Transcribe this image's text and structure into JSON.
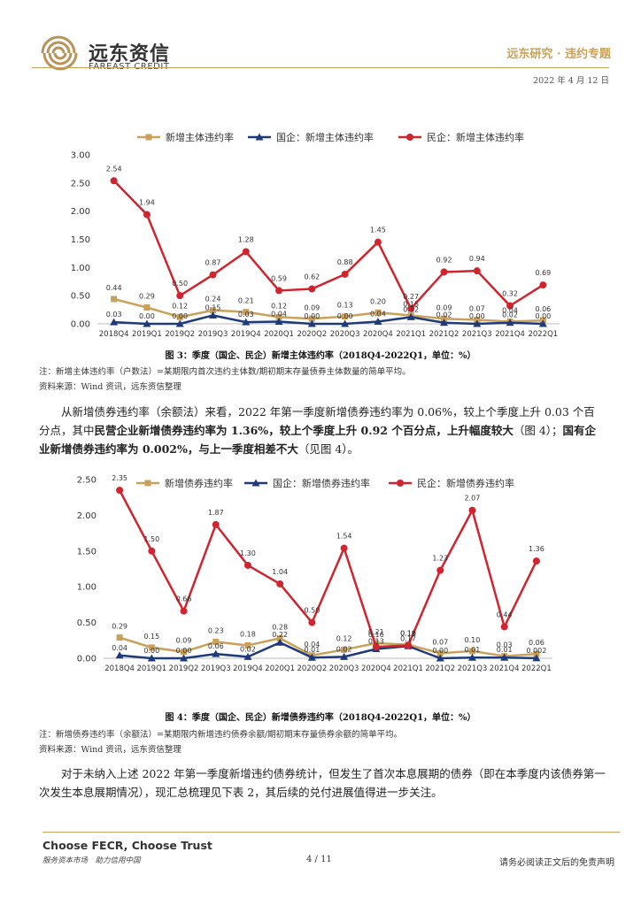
{
  "header": {
    "brand_cn": "远东资信",
    "brand_en": "FAREAST CREDIT",
    "section": "远东研究 · 违约专题",
    "date": "2022 年 4 月 12 日"
  },
  "figure3": {
    "caption": "图 3：季度（国企、民企）新增主体违约率（2018Q4-2022Q1，单位：%）",
    "note": "注：新增主体违约率（户数法）=某期限内首次违约主体数/期初期末存量债券主体数量的简单平均。",
    "source": "资料来源：Wind 资讯，远东资信整理"
  },
  "paragraph1": {
    "part1": "从新增债券违约率（余额法）来看，2022 年第一季度新增债券违约率为 0.06%，较上个季度上升 0.03 个百分点，其中",
    "bold1": "民营企业新增债券违约率为 1.36%，较上个季度上升 0.92 个百分点，上升幅度较大",
    "part2": "（图 4）；",
    "bold2": "国有企业新增债券违约率为 0.002%，与上一季度相差不大",
    "part3": "（见图 4）。"
  },
  "figure4": {
    "caption": "图 4：季度（国企、民企）新增债券违约率（2018Q4-2022Q1，单位：%）",
    "note": "注：新增债券违约率（余额法）=某期限内新增违约债券余额/期初期末存量债券余额的简单平均。",
    "source": "资料来源：Wind 资讯，远东资信整理"
  },
  "paragraph2": "对于未纳入上述 2022 年第一季度新增违约债券统计，但发生了首次本息展期的债券（即在本季度内该债券第一次发生本息展期情况），现汇总梳理见下表 2，其后续的兑付进展值得进一步关注。",
  "footer": {
    "slogan_en": "Choose FECR, Choose Trust",
    "slogan_cn": "服务资本市场　助力信用中国",
    "page": "4 / 11",
    "disclaimer": "请务必阅读正文后的免责声明"
  },
  "chart_data": [
    {
      "type": "line",
      "title": "",
      "categories": [
        "2018Q4",
        "2019Q1",
        "2019Q2",
        "2019Q3",
        "2019Q4",
        "2020Q1",
        "2020Q2",
        "2020Q3",
        "2020Q4",
        "2021Q1",
        "2021Q2",
        "2021Q3",
        "2021Q4",
        "2022Q1"
      ],
      "ylim": [
        0,
        3.0
      ],
      "yticks": [
        "0.00",
        "0.50",
        "1.00",
        "1.50",
        "2.00",
        "2.50",
        "3.00"
      ],
      "legend_position": "top",
      "series": [
        {
          "name": "新增主体违约率",
          "color": "#c9a15a",
          "marker": "square",
          "values": [
            0.44,
            0.29,
            0.12,
            0.24,
            0.21,
            0.12,
            0.09,
            0.13,
            0.2,
            0.15,
            0.09,
            0.07,
            0.04,
            0.06
          ],
          "labels": [
            "0.44",
            "0.29",
            "0.12",
            "0.24",
            "0.21",
            "0.12",
            "0.09",
            "0.13",
            "0.20",
            "0.15",
            "0.09",
            "0.07",
            "0.04",
            "0.06"
          ]
        },
        {
          "name": "国企：新增主体违约率",
          "color": "#1f3a7a",
          "marker": "triangle",
          "values": [
            0.03,
            0.0,
            0.0,
            0.15,
            0.03,
            0.04,
            0.0,
            0.0,
            0.04,
            0.12,
            0.02,
            0.0,
            0.02,
            0.0
          ],
          "labels": [
            "0.03",
            "0.00",
            "0.00",
            "0.15",
            "0.03",
            "0.04",
            "0.00",
            "0.00",
            "0.04",
            "0.12",
            "0.02",
            "0.00",
            "0.02",
            "0.00"
          ]
        },
        {
          "name": "民企：新增主体违约率",
          "color": "#d0242e",
          "marker": "circle",
          "values": [
            2.54,
            1.94,
            0.5,
            0.87,
            1.28,
            0.59,
            0.62,
            0.88,
            1.45,
            0.27,
            0.92,
            0.94,
            0.32,
            0.69
          ],
          "labels": [
            "2.54",
            "1.94",
            "0.50",
            "0.87",
            "1.28",
            "0.59",
            "0.62",
            "0.88",
            "1.45",
            "0.27",
            "0.92",
            "0.94",
            "0.32",
            "0.69"
          ]
        }
      ]
    },
    {
      "type": "line",
      "title": "",
      "categories": [
        "2018Q4",
        "2019Q1",
        "2019Q2",
        "2019Q3",
        "2019Q4",
        "2020Q1",
        "2020Q2",
        "2020Q3",
        "2020Q4",
        "2021Q1",
        "2021Q2",
        "2021Q3",
        "2021Q4",
        "2022Q1"
      ],
      "ylim": [
        0,
        2.5
      ],
      "yticks": [
        "0.00",
        "0.50",
        "1.00",
        "1.50",
        "2.00",
        "2.50"
      ],
      "legend_position": "top",
      "series": [
        {
          "name": "新增债券违约率",
          "color": "#c9a15a",
          "marker": "square",
          "values": [
            0.29,
            0.15,
            0.09,
            0.23,
            0.18,
            0.28,
            0.04,
            0.12,
            0.21,
            0.19,
            0.07,
            0.1,
            0.03,
            0.06
          ],
          "labels": [
            "0.29",
            "0.15",
            "0.09",
            "0.23",
            "0.18",
            "0.28",
            "0.04",
            "0.12",
            "0.21",
            "0.19",
            "0.07",
            "0.10",
            "0.03",
            "0.06"
          ]
        },
        {
          "name": "国企：新增债券违约率",
          "color": "#1f3a7a",
          "marker": "triangle",
          "values": [
            0.04,
            0.0,
            0.0,
            0.06,
            0.02,
            0.22,
            0.01,
            0.02,
            0.13,
            0.17,
            0.0,
            0.01,
            0.01,
            0.002
          ],
          "labels": [
            "0.04",
            "0.00",
            "0.00",
            "0.06",
            "0.02",
            "0.22",
            "0.01",
            "0.02",
            "0.13",
            "0.17",
            "0.00",
            "0.01",
            "0.01",
            "0.002"
          ]
        },
        {
          "name": "民企：新增债券违约率",
          "color": "#d0242e",
          "marker": "circle",
          "values": [
            2.35,
            1.5,
            0.66,
            1.87,
            1.3,
            1.04,
            0.5,
            1.54,
            0.16,
            0.18,
            1.23,
            2.07,
            0.44,
            1.36
          ],
          "labels": [
            "2.35",
            "1.50",
            "0.66",
            "1.87",
            "1.30",
            "1.04",
            "0.50",
            "1.54",
            "0.16",
            "0.18",
            "1.23",
            "2.07",
            "0.44",
            "1.36"
          ]
        }
      ]
    }
  ]
}
